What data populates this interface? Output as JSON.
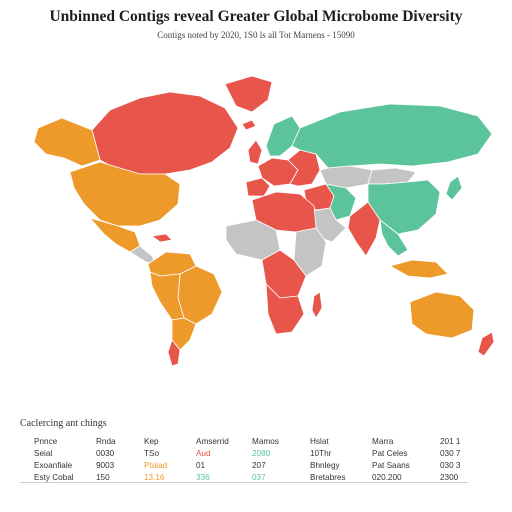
{
  "title": "Unbinned Contigs reveal Greater Global Microbome Diversity",
  "subtitle": "Contigs noted by 2020, 1S0 ls all Tot Marnens - 15090",
  "colors": {
    "red": "#e8554a",
    "orange": "#ee9a2a",
    "green": "#5cc49a",
    "gray": "#c4c4c4",
    "white": "#ffffff"
  },
  "regions": [
    {
      "id": "canada",
      "fill": "red"
    },
    {
      "id": "greenland",
      "fill": "red"
    },
    {
      "id": "alaska",
      "fill": "orange"
    },
    {
      "id": "usa",
      "fill": "orange"
    },
    {
      "id": "mexico",
      "fill": "orange"
    },
    {
      "id": "caribbean",
      "fill": "red"
    },
    {
      "id": "central-america",
      "fill": "gray"
    },
    {
      "id": "colombia-venezuela",
      "fill": "orange"
    },
    {
      "id": "brazil",
      "fill": "orange"
    },
    {
      "id": "peru-bolivia",
      "fill": "orange"
    },
    {
      "id": "southern-cone",
      "fill": "orange"
    },
    {
      "id": "patagonia",
      "fill": "red"
    },
    {
      "id": "uk-ireland",
      "fill": "red"
    },
    {
      "id": "iceland",
      "fill": "red"
    },
    {
      "id": "scandinavia",
      "fill": "green"
    },
    {
      "id": "western-europe",
      "fill": "red"
    },
    {
      "id": "iberia",
      "fill": "red"
    },
    {
      "id": "eastern-europe",
      "fill": "red"
    },
    {
      "id": "russia",
      "fill": "green"
    },
    {
      "id": "kazakhstan",
      "fill": "gray"
    },
    {
      "id": "china",
      "fill": "green"
    },
    {
      "id": "mongolia",
      "fill": "gray"
    },
    {
      "id": "middle-east",
      "fill": "red"
    },
    {
      "id": "arabia",
      "fill": "gray"
    },
    {
      "id": "iran",
      "fill": "green"
    },
    {
      "id": "india",
      "fill": "red"
    },
    {
      "id": "southeast-asia",
      "fill": "green"
    },
    {
      "id": "japan",
      "fill": "green"
    },
    {
      "id": "indonesia",
      "fill": "orange"
    },
    {
      "id": "west-africa",
      "fill": "gray"
    },
    {
      "id": "north-africa",
      "fill": "red"
    },
    {
      "id": "east-africa",
      "fill": "gray"
    },
    {
      "id": "central-africa",
      "fill": "red"
    },
    {
      "id": "southern-africa",
      "fill": "red"
    },
    {
      "id": "madagascar",
      "fill": "red"
    },
    {
      "id": "australia",
      "fill": "orange"
    },
    {
      "id": "new-zealand",
      "fill": "red"
    }
  ],
  "legend": {
    "heading": "Caclercing ant chings",
    "rows": [
      {
        "cells": [
          {
            "text": "Pnnce",
            "color": "#333333"
          },
          {
            "text": "Rnda",
            "color": "#333333"
          },
          {
            "text": "Kep",
            "color": "#333333"
          },
          {
            "text": "Amserrid",
            "color": "#333333"
          },
          {
            "text": "Mamos",
            "color": "#333333"
          },
          {
            "text": "Hslat",
            "color": "#333333"
          },
          {
            "text": "Marra",
            "color": "#333333"
          },
          {
            "text": "201 1",
            "color": "#333333"
          }
        ]
      },
      {
        "cells": [
          {
            "text": "Seial",
            "color": "#333333"
          },
          {
            "text": "0030",
            "color": "#333333"
          },
          {
            "text": "TSo",
            "color": "#333333"
          },
          {
            "text": "Aud",
            "color": "#e8554a"
          },
          {
            "text": "2080",
            "color": "#5cc49a"
          },
          {
            "text": "10Thr",
            "color": "#333333"
          },
          {
            "text": "Pat Celes",
            "color": "#333333"
          },
          {
            "text": "030 7",
            "color": "#333333"
          }
        ]
      },
      {
        "cells": [
          {
            "text": "Exoanfiale",
            "color": "#333333"
          },
          {
            "text": "9003",
            "color": "#333333"
          },
          {
            "text": "Ptalad",
            "color": "#ee9a2a"
          },
          {
            "text": "01",
            "color": "#333333"
          },
          {
            "text": "207",
            "color": "#333333"
          },
          {
            "text": "Bhnlegy",
            "color": "#333333"
          },
          {
            "text": "Pat Saans",
            "color": "#333333"
          },
          {
            "text": "030 3",
            "color": "#333333"
          }
        ]
      },
      {
        "cells": [
          {
            "text": "Esty Cobal",
            "color": "#333333"
          },
          {
            "text": "150",
            "color": "#333333"
          },
          {
            "text": "13.16",
            "color": "#ee9a2a"
          },
          {
            "text": "336",
            "color": "#5cc49a"
          },
          {
            "text": "037",
            "color": "#5cc49a"
          },
          {
            "text": "Bretabres",
            "color": "#333333"
          },
          {
            "text": "020.200",
            "color": "#333333"
          },
          {
            "text": "2300",
            "color": "#333333"
          }
        ]
      }
    ]
  }
}
